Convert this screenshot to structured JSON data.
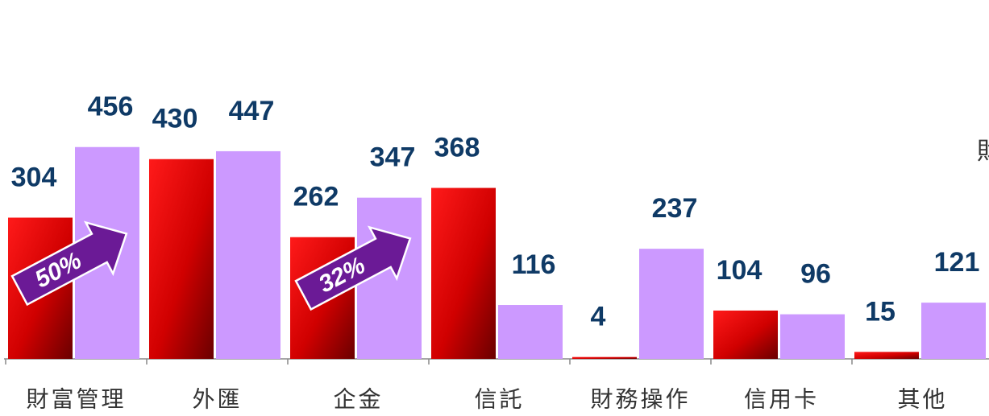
{
  "chart_data": {
    "type": "bar",
    "categories": [
      "財富管理",
      "外匯",
      "企金",
      "信託",
      "財務操作",
      "信用卡",
      "其他"
    ],
    "series": [
      {
        "color": "#ff0000",
        "values": [
          304,
          430,
          262,
          368,
          4,
          104,
          15
        ]
      },
      {
        "color": "#cc99ff",
        "values": [
          456,
          447,
          347,
          116,
          237,
          96,
          121
        ]
      }
    ],
    "ylim": [
      0,
      750
    ],
    "annotations": [
      "50%",
      "32%",
      "財"
    ]
  }
}
